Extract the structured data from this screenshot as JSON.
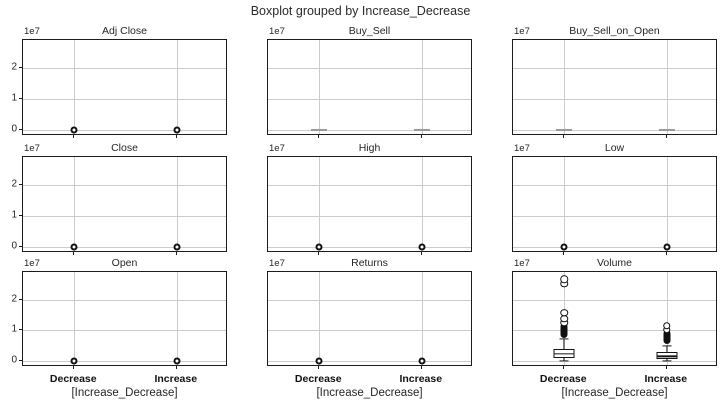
{
  "chart_data": {
    "type": "table",
    "note": "3x3 grid of pandas/matplotlib boxplots grouped by a category; values in units of 1e7",
    "title": "Boxplot grouped by Increase_Decrease",
    "group_label": "[Increase_Decrease]",
    "categories": [
      "Decrease",
      "Increase"
    ],
    "y_offset_text": "1e7",
    "ytick_labels": [
      "0",
      "1",
      "2"
    ],
    "yticks": [
      0,
      1,
      2
    ],
    "ylim": [
      -0.2,
      2.9
    ],
    "grid": true,
    "colors": {
      "frame": "#1c1c1c",
      "grid": "#cccccc",
      "marker": "#111111",
      "flat_mark": "#9a9a9a",
      "text": "#262626"
    },
    "subplots": [
      {
        "title": "Adj Close",
        "row": 0,
        "col": 0,
        "style": "fliers_zero",
        "boxes": [
          {
            "fliers": [
              0
            ]
          },
          {
            "fliers": [
              0
            ]
          }
        ]
      },
      {
        "title": "Buy_Sell",
        "row": 0,
        "col": 1,
        "style": "flat_zero",
        "boxes": [
          {
            "value": 0
          },
          {
            "value": 0
          }
        ]
      },
      {
        "title": "Buy_Sell_on_Open",
        "row": 0,
        "col": 2,
        "style": "flat_zero",
        "boxes": [
          {
            "value": 0
          },
          {
            "value": 0
          }
        ]
      },
      {
        "title": "Close",
        "row": 1,
        "col": 0,
        "style": "fliers_zero",
        "boxes": [
          {
            "fliers": [
              0
            ]
          },
          {
            "fliers": [
              0
            ]
          }
        ]
      },
      {
        "title": "High",
        "row": 1,
        "col": 1,
        "style": "fliers_zero",
        "boxes": [
          {
            "fliers": [
              0
            ]
          },
          {
            "fliers": [
              0
            ]
          }
        ]
      },
      {
        "title": "Low",
        "row": 1,
        "col": 2,
        "style": "fliers_zero",
        "boxes": [
          {
            "fliers": [
              0
            ]
          },
          {
            "fliers": [
              0
            ]
          }
        ]
      },
      {
        "title": "Open",
        "row": 2,
        "col": 0,
        "style": "fliers_zero",
        "boxes": [
          {
            "fliers": [
              0
            ]
          },
          {
            "fliers": [
              0
            ]
          }
        ]
      },
      {
        "title": "Returns",
        "row": 2,
        "col": 1,
        "style": "fliers_zero",
        "boxes": [
          {
            "fliers": [
              0
            ]
          },
          {
            "fliers": [
              0
            ]
          }
        ]
      },
      {
        "title": "Volume",
        "row": 2,
        "col": 2,
        "style": "box",
        "boxes": [
          {
            "q1": 0.08,
            "median": 0.23,
            "q3": 0.4,
            "whisker_low": 0.0,
            "whisker_high": 0.72,
            "flier_cluster": [
              0.75,
              1.24
            ],
            "fliers": [
              1.38,
              1.57,
              2.51,
              2.67
            ]
          },
          {
            "q1": 0.05,
            "median": 0.15,
            "q3": 0.28,
            "whisker_low": 0.0,
            "whisker_high": 0.5,
            "flier_cluster": [
              0.55,
              1.02
            ],
            "fliers": [
              1.14
            ]
          }
        ]
      }
    ]
  }
}
